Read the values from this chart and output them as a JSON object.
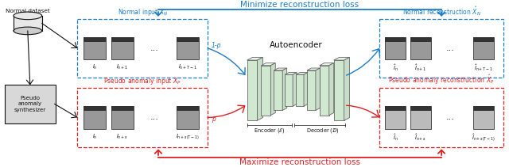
{
  "title_top": "Minimize reconstruction loss",
  "title_bottom": "Maximize reconstruction loss",
  "blue_color": "#1a7cc9",
  "red_color": "#e02020",
  "black_color": "#111111",
  "ae_fill_light": "#e8f5e8",
  "ae_fill": "#d0e8d0",
  "ae_edge": "#888888",
  "normal_label": "Normal input $X_N$",
  "pseudo_label": "Pseudo anomaly input $X_P$",
  "normal_recon_label": "Normal reconstruction $\\hat{X}_N$",
  "pseudo_recon_label": "Pseudo anomaly reconstruction $\\hat{X}_P$",
  "autoencoder_label": "Autoencoder",
  "encoder_label": "Encoder ($\\mathcal{E}$)",
  "decoder_label": "Decoder ($\\mathcal{D}$)",
  "normal_dataset_label": "Normal dataset",
  "pseudo_synth_line1": "Pseudo",
  "pseudo_synth_line2": "anomaly",
  "pseudo_synth_line3": "synthesizer",
  "prob_1mp": "1-p",
  "prob_p": "p",
  "frame_labels_normal_in": [
    "$I_n$",
    "$I_{n+1}$",
    "$I_{n+T-1}$"
  ],
  "frame_labels_pseudo_in": [
    "$I_n$",
    "$I_{n+s}$",
    "$I_{n+s(T-1)}$"
  ],
  "frame_labels_normal_out": [
    "$\\hat{I}_n$",
    "$\\hat{I}_{n+1}$",
    "$\\hat{I}_{n+T-1}$"
  ],
  "frame_labels_pseudo_out": [
    "$\\hat{I}_n$",
    "$\\hat{I}_{n+s}$",
    "$\\hat{I}_{n+s(T-1)}$"
  ],
  "figw": 6.4,
  "figh": 2.11,
  "dpi": 100
}
